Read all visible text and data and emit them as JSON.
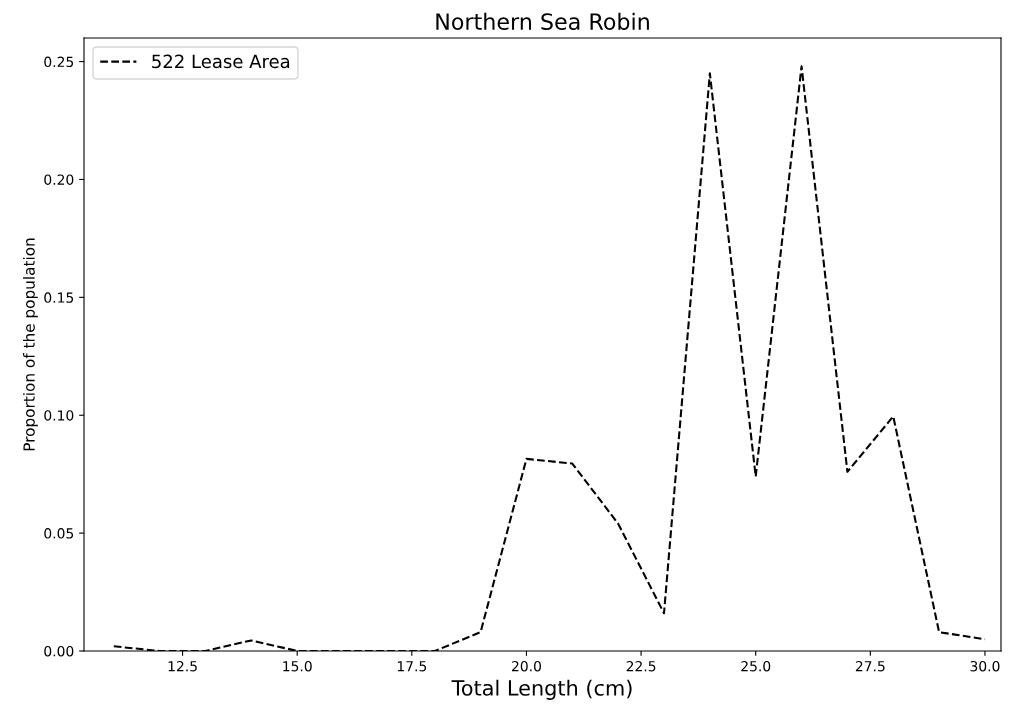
{
  "chart_data": {
    "type": "line",
    "title": "Northern Sea Robin",
    "xlabel": "Total Length (cm)",
    "ylabel": "Proportion of the population",
    "x": [
      11,
      12,
      13,
      14,
      15,
      16,
      17,
      18,
      19,
      20,
      21,
      22,
      23,
      24,
      25,
      26,
      27,
      28,
      29,
      30
    ],
    "series": [
      {
        "name": "522 Lease Area",
        "color": "#000000",
        "values": [
          0.002,
          0,
          0,
          0.0045,
          0,
          0,
          0,
          0,
          0.008,
          0.0815,
          0.0795,
          0.054,
          0.016,
          0.245,
          0.074,
          0.248,
          0.076,
          0.0995,
          0.008,
          0.005
        ]
      }
    ],
    "line_style": "dashed",
    "marker": "none",
    "legend": "top left",
    "grid": false,
    "xlim": [
      10.35,
      30.35
    ],
    "ylim": [
      0,
      0.26
    ],
    "xticks": [
      {
        "value": 12.5,
        "label": "12.5"
      },
      {
        "value": 15,
        "label": "15.0"
      },
      {
        "value": 17.5,
        "label": "17.5"
      },
      {
        "value": 20,
        "label": "20.0"
      },
      {
        "value": 22.5,
        "label": "22.5"
      },
      {
        "value": 25,
        "label": "25.0"
      },
      {
        "value": 27.5,
        "label": "27.5"
      },
      {
        "value": 30,
        "label": "30.0"
      }
    ],
    "yticks": [
      {
        "value": 0,
        "label": "0.00"
      },
      {
        "value": 0.05,
        "label": "0.05"
      },
      {
        "value": 0.1,
        "label": "0.10"
      },
      {
        "value": 0.15,
        "label": "0.15"
      },
      {
        "value": 0.2,
        "label": "0.20"
      },
      {
        "value": 0.25,
        "label": "0.25"
      }
    ]
  }
}
